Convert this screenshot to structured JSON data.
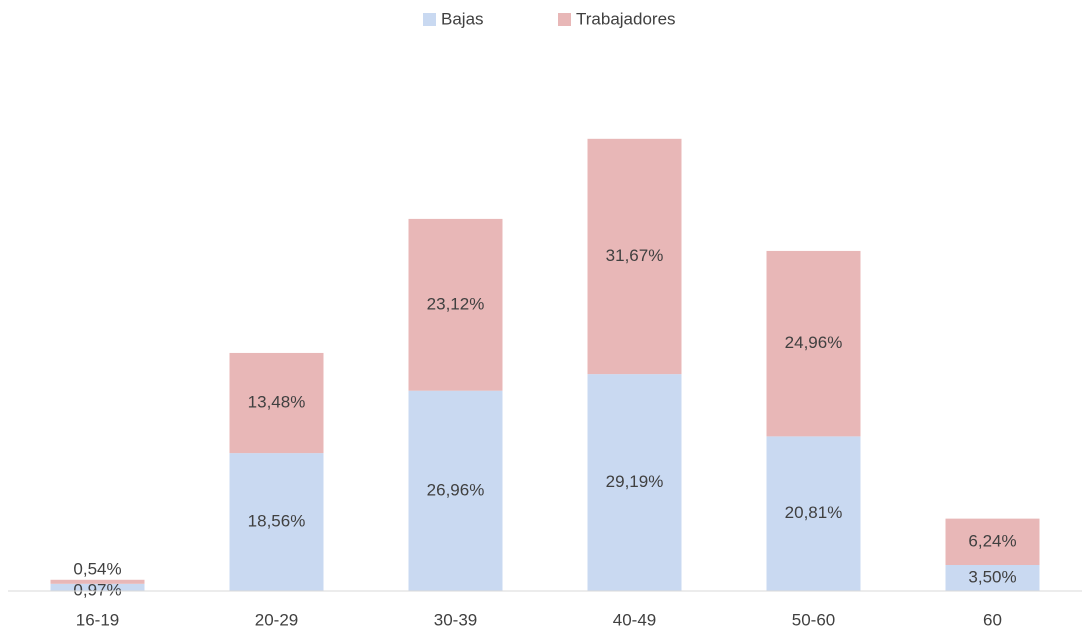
{
  "chart_data": {
    "type": "stacked_bar",
    "categories": [
      "16-19",
      "20-29",
      "30-39",
      "40-49",
      "50-60",
      "60"
    ],
    "series": [
      {
        "name": "Bajas",
        "color": "#c9d9f1",
        "values": [
          0.97,
          18.56,
          26.96,
          29.19,
          20.81,
          3.5
        ],
        "value_labels": [
          "0,97%",
          "18,56%",
          "26,96%",
          "29,19%",
          "20,81%",
          "3,50%"
        ]
      },
      {
        "name": "Trabajadores",
        "color": "#e8b7b7",
        "values": [
          0.54,
          13.48,
          23.12,
          31.67,
          24.96,
          6.24
        ],
        "value_labels": [
          "0,54%",
          "13,48%",
          "23,12%",
          "31,67%",
          "24,96%",
          "6,24%"
        ]
      }
    ],
    "legend": "top"
  }
}
